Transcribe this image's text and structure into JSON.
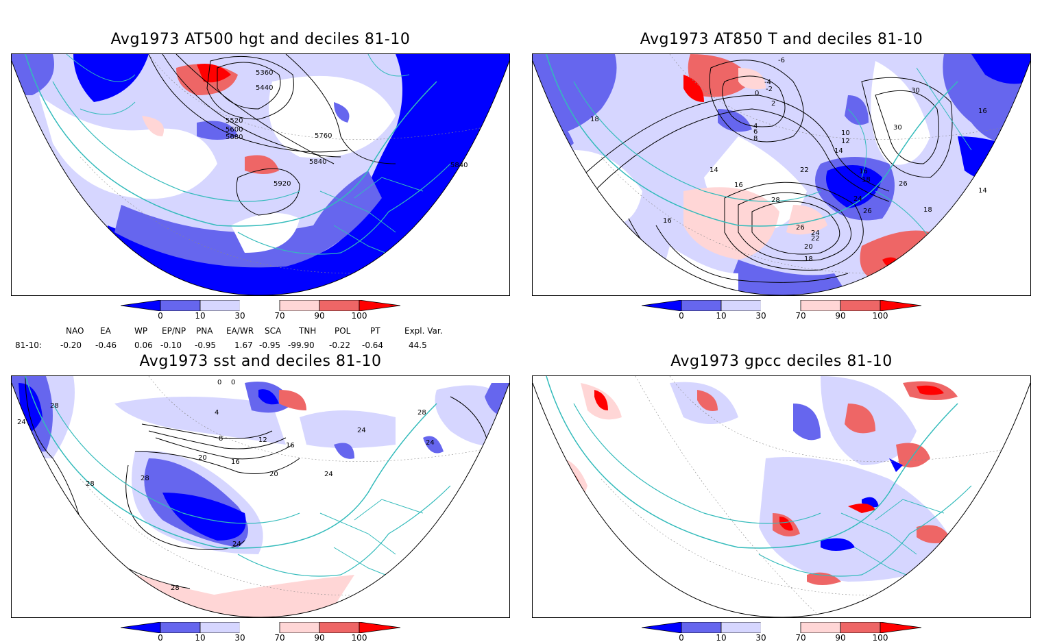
{
  "panels": [
    {
      "title": "Avg1973 AT500 hgt and deciles 81-10",
      "contour_labels": [
        "5360",
        "5440",
        "5520",
        "5600",
        "5680",
        "5760",
        "5840",
        "5920",
        "5840"
      ]
    },
    {
      "title": "Avg1973 AT850 T and deciles 81-10",
      "contour_labels": [
        "-6",
        "-4",
        "-2",
        "0",
        "2",
        "4",
        "6",
        "8",
        "10",
        "12",
        "14",
        "14",
        "16",
        "16",
        "16",
        "18",
        "18",
        "18",
        "20",
        "22",
        "22",
        "24",
        "24",
        "26",
        "26",
        "26",
        "28",
        "30",
        "30",
        "16",
        "14",
        "18"
      ]
    },
    {
      "title": "Avg1973 sst and deciles 81-10",
      "contour_labels": [
        "0",
        "0",
        "4",
        "8",
        "12",
        "16",
        "16",
        "20",
        "20",
        "24",
        "24",
        "24",
        "24",
        "28",
        "28",
        "28",
        "28",
        "28",
        "24"
      ]
    },
    {
      "title": "Avg1973 gpcc deciles 81-10",
      "contour_labels": []
    }
  ],
  "colorbar": {
    "ticks": [
      "0",
      "10",
      "30",
      "70",
      "90",
      "100"
    ],
    "colors": [
      "#0000ff",
      "#6666ee",
      "#d6d6ff",
      "#ffffff",
      "#ffd6d6",
      "#ee6666",
      "#ff0000"
    ]
  },
  "indices": {
    "headers": [
      "NAO",
      "EA",
      "WP",
      "EP/NP",
      "PNA",
      "EA/WR",
      "SCA",
      "TNH",
      "POL",
      "PT",
      "Expl. Var."
    ],
    "row_label": "81-10:",
    "values": [
      "-0.20",
      "-0.46",
      "0.06",
      "-0.10",
      "-0.95",
      "1.67",
      "-0.95",
      "-99.90",
      "-0.22",
      "-0.64",
      "44.5"
    ]
  },
  "colors": {
    "coast": "#33bbbb",
    "contour": "#000000"
  }
}
